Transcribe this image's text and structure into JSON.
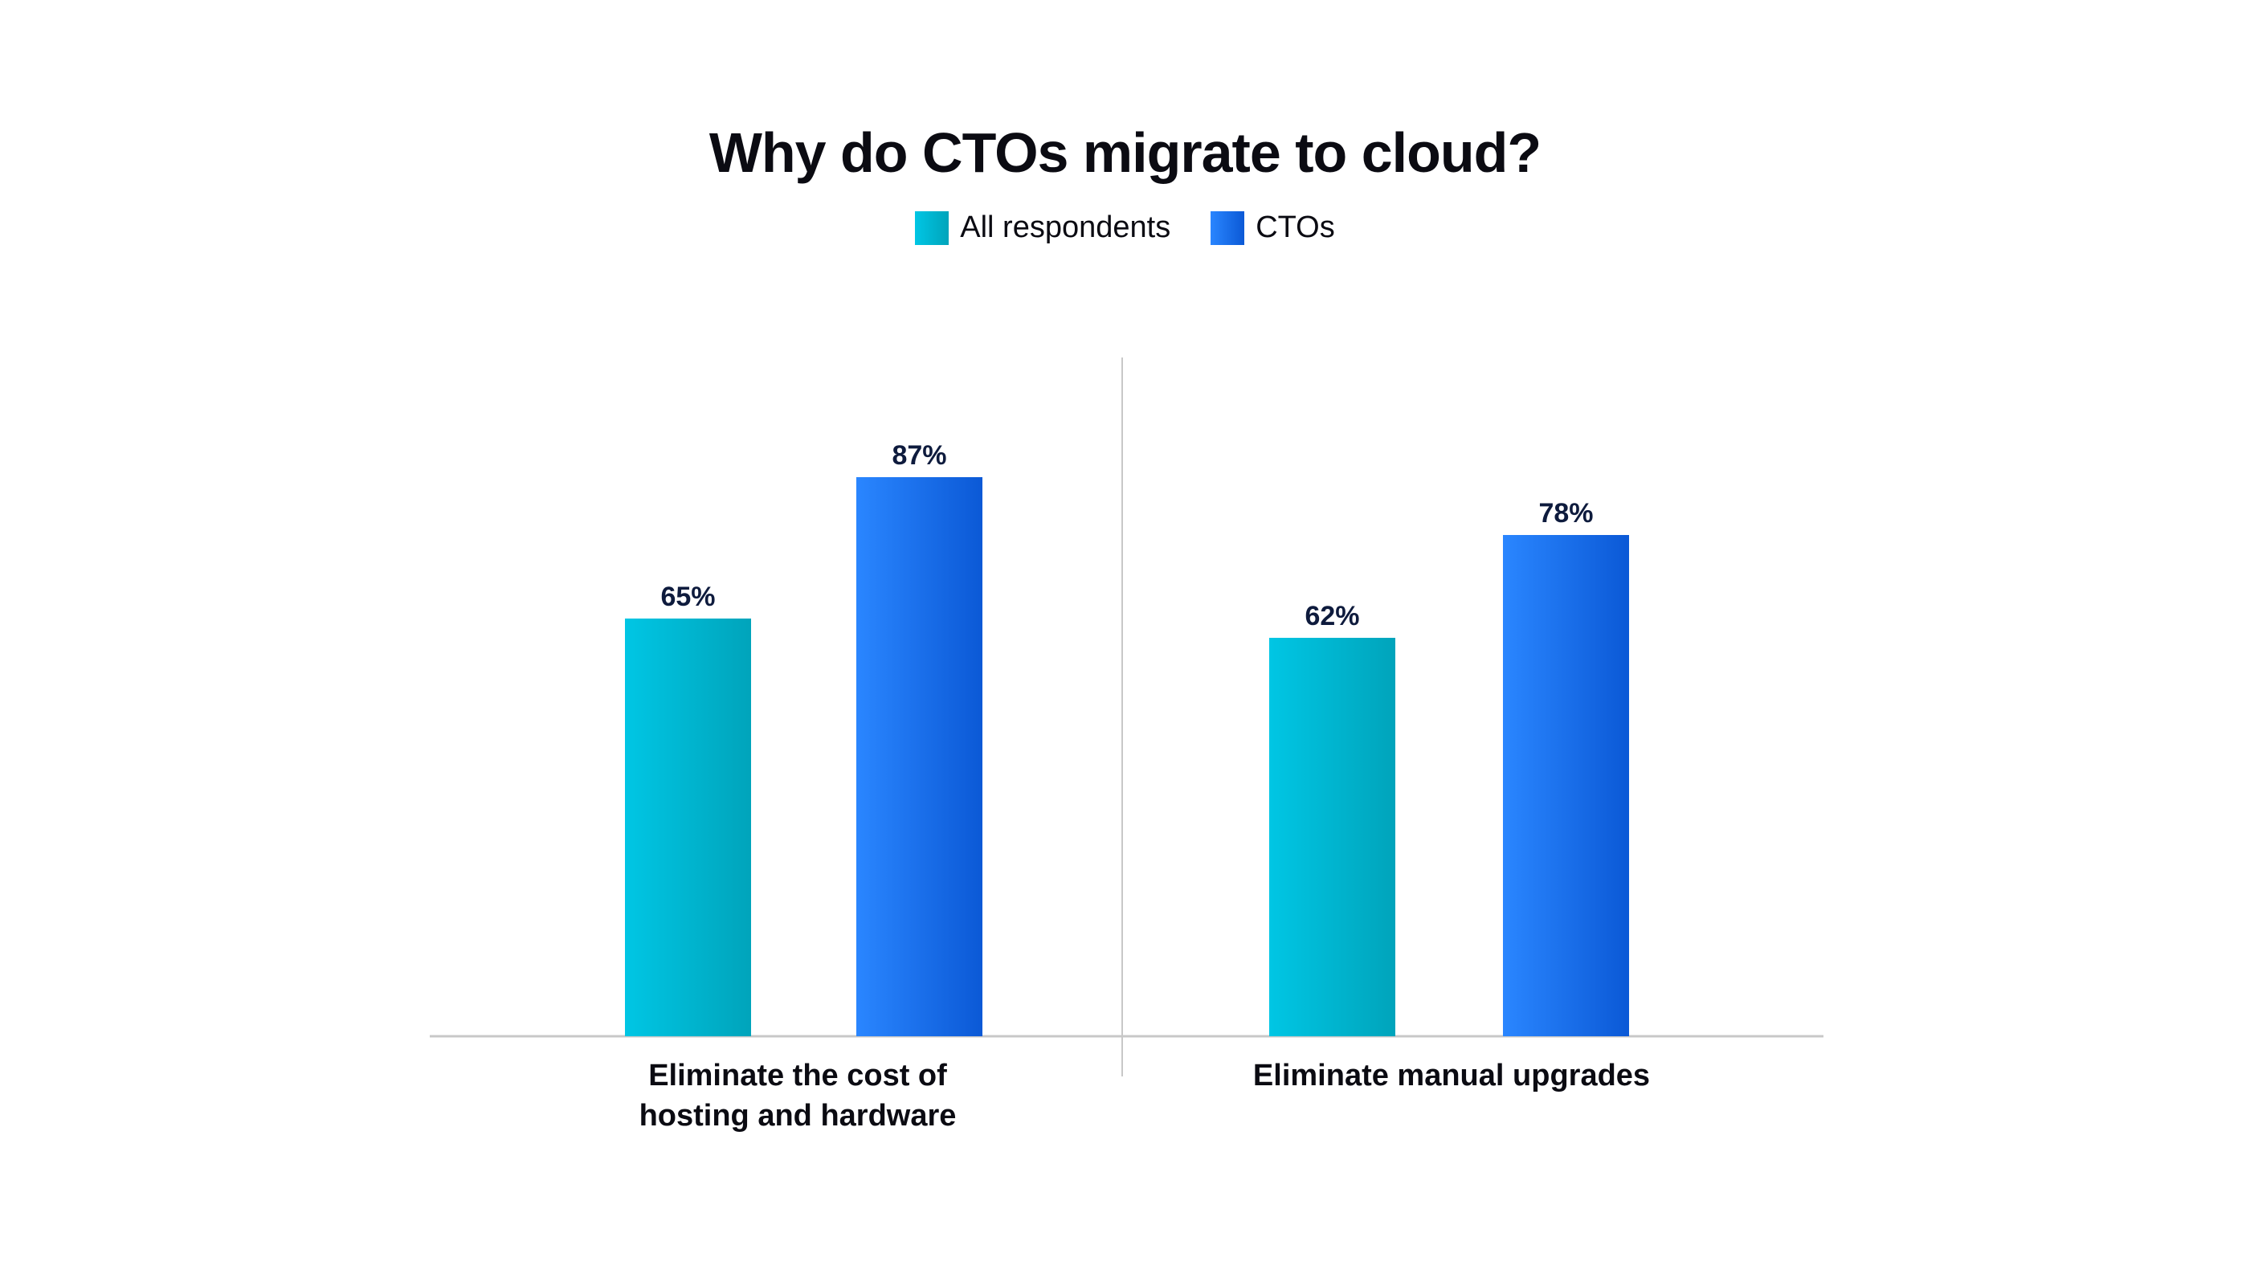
{
  "chart_data": {
    "type": "bar",
    "title": "Why do CTOs migrate to cloud?",
    "categories": [
      [
        "Eliminate the cost of",
        "hosting and hardware"
      ],
      [
        "Eliminate manual upgrades"
      ]
    ],
    "series": [
      {
        "name": "All respondents",
        "values": [
          65,
          62
        ],
        "labels": [
          "65%",
          "62%"
        ],
        "color_start": "#00c6e4",
        "color_end": "#00a4bb"
      },
      {
        "name": "CTOs",
        "values": [
          87,
          78
        ],
        "labels": [
          "87%",
          "78%"
        ],
        "color_start": "#2a86ff",
        "color_end": "#0b59d6"
      }
    ],
    "ylim": [
      0,
      100
    ],
    "grid": false,
    "legend": "top-center",
    "baseline_color": "#c8c8c8"
  }
}
